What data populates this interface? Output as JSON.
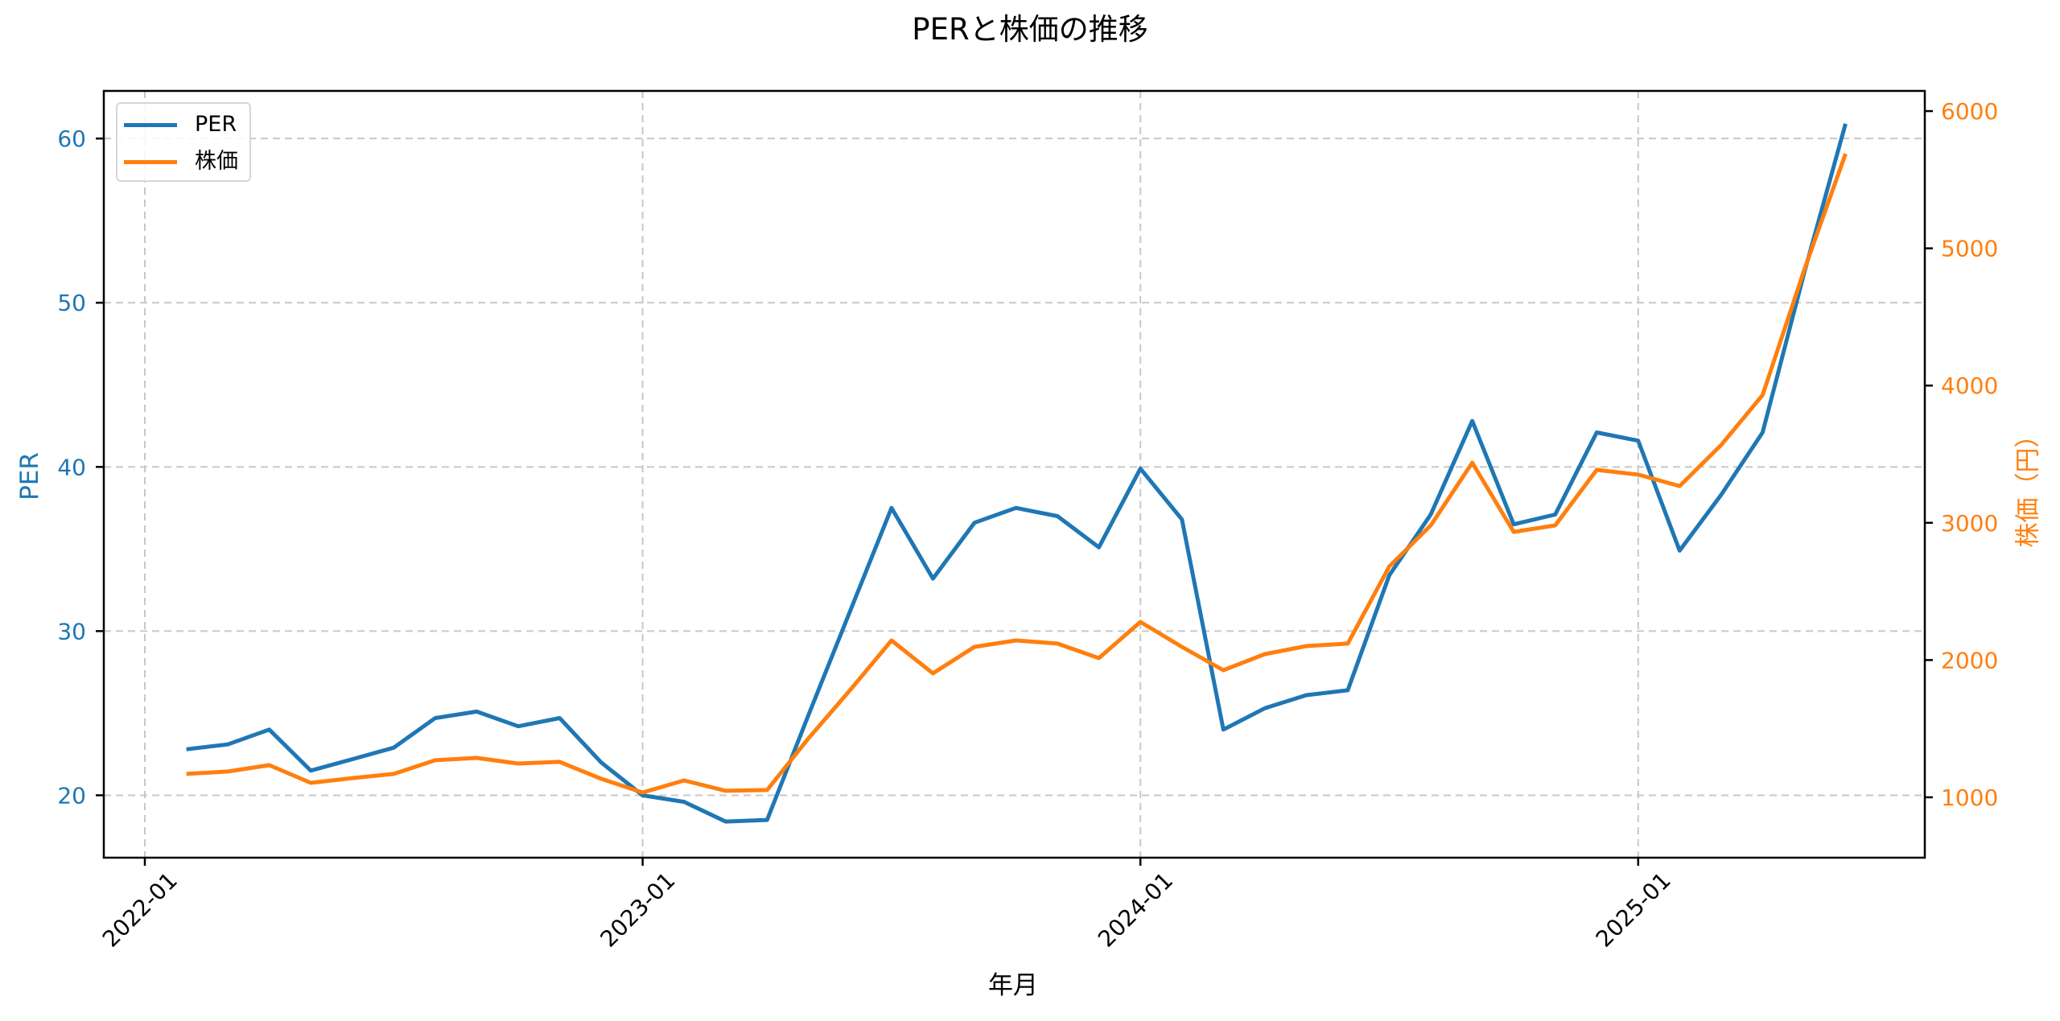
{
  "title": "PERと株価の推移",
  "legend": {
    "items": [
      {
        "label": "PER",
        "color": "#1f77b4"
      },
      {
        "label": "株価",
        "color": "#ff7f0e"
      }
    ]
  },
  "axes": {
    "x_label": "年月",
    "y_left_label": "PER",
    "y_right_label": "株価（円）",
    "x_ticks": [
      "2022-01",
      "2023-01",
      "2024-01",
      "2025-01"
    ],
    "y_left_ticks": [
      20,
      30,
      40,
      50,
      60
    ],
    "y_right_ticks": [
      1000,
      2000,
      3000,
      4000,
      5000,
      6000
    ],
    "colors": {
      "left": "#1f77b4",
      "right": "#ff7f0e",
      "grid": "#c8c8c8",
      "axis": "#000000"
    }
  },
  "chart_data": {
    "type": "line",
    "title": "PERと株価の推移",
    "xlabel": "年月",
    "ylabel": "PER",
    "ylabel_right": "株価（円）",
    "x": [
      "2022-02",
      "2022-03",
      "2022-04",
      "2022-05",
      "2022-06",
      "2022-07",
      "2022-08",
      "2022-09",
      "2022-10",
      "2022-11",
      "2022-12",
      "2023-01",
      "2023-02",
      "2023-03",
      "2023-04",
      "2023-05",
      "2023-06",
      "2023-07",
      "2023-08",
      "2023-09",
      "2023-10",
      "2023-11",
      "2023-12",
      "2024-01",
      "2024-02",
      "2024-03",
      "2024-04",
      "2024-05",
      "2024-06",
      "2024-07",
      "2024-08",
      "2024-09",
      "2024-10",
      "2024-11",
      "2024-12",
      "2025-01",
      "2025-02",
      "2025-03",
      "2025-04",
      "2025-05",
      "2025-06"
    ],
    "series": [
      {
        "name": "PER",
        "axis": "left",
        "color": "#1f77b4",
        "values": [
          22.8,
          23.1,
          24.0,
          21.5,
          22.2,
          22.9,
          24.7,
          25.1,
          24.2,
          24.7,
          22.0,
          20.0,
          19.6,
          18.4,
          18.5,
          24.9,
          31.2,
          37.5,
          33.2,
          36.6,
          37.5,
          37.0,
          35.1,
          39.9,
          36.8,
          24.0,
          25.3,
          26.1,
          26.4,
          33.4,
          37.1,
          42.8,
          36.5,
          37.1,
          42.1,
          41.6,
          34.9,
          38.3,
          42.1,
          51.8,
          60.9
        ]
      },
      {
        "name": "株価",
        "axis": "right",
        "color": "#ff7f0e",
        "values": [
          1170,
          1188,
          1234,
          1105,
          1140,
          1170,
          1270,
          1287,
          1246,
          1258,
          1135,
          1035,
          1123,
          1047,
          1053,
          1430,
          1780,
          2143,
          1903,
          2096,
          2143,
          2120,
          2014,
          2278,
          2096,
          1926,
          2043,
          2102,
          2120,
          2682,
          2981,
          3438,
          2934,
          2981,
          3386,
          3351,
          3268,
          3567,
          3931,
          4840,
          5689
        ]
      }
    ],
    "ylim": [
      16.2,
      62.9
    ],
    "ylim_right": [
      560,
      6147
    ],
    "x_ticks": [
      "2022-01",
      "2023-01",
      "2024-01",
      "2025-01"
    ],
    "y_ticks": [
      20,
      30,
      40,
      50,
      60
    ],
    "y_ticks_right": [
      1000,
      2000,
      3000,
      4000,
      5000,
      6000
    ],
    "grid": true,
    "grid_style": "dashed",
    "legend_position": "upper left"
  }
}
